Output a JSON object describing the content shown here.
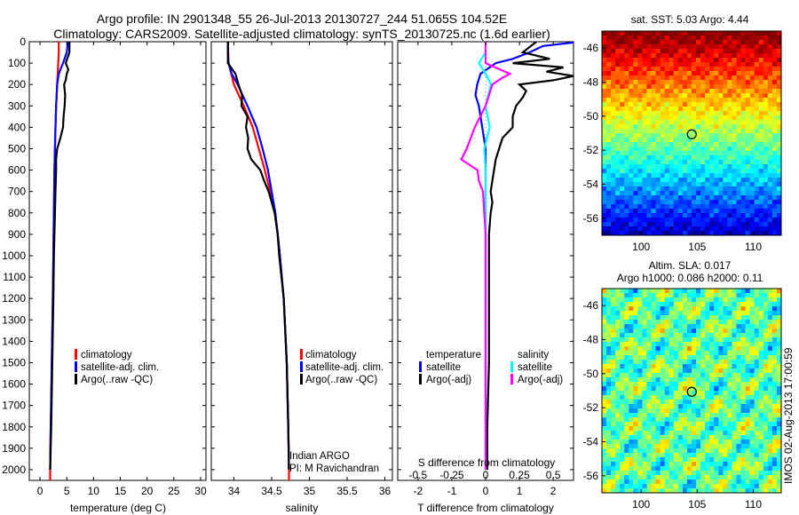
{
  "header": {
    "title_line1": "Argo profile: IN 2901348_55 26-Jul-2013 20130727_244 51.065S 104.52E",
    "title_line2": "Climatology: CARS2009. Satellite-adjusted climatology: synTS_20130725.nc (1.6d earlier)"
  },
  "colors": {
    "climatology": "#ff0000",
    "satellite": "#0000ff",
    "argo": "#000000",
    "salinity_satellite": "#00ffff",
    "salinity_argo": "#ff00ff"
  },
  "depth_axis": {
    "ylim": [
      0,
      2050
    ],
    "ticks": [
      "0",
      "100",
      "200",
      "300",
      "400",
      "500",
      "600",
      "700",
      "800",
      "900",
      "1000",
      "1100",
      "1200",
      "1300",
      "1400",
      "1500",
      "1600",
      "1700",
      "1800",
      "1900",
      "2000"
    ]
  },
  "chart_data": [
    {
      "type": "line",
      "name": "temperature-profile",
      "xlabel": "temperature (deg C)",
      "xlim": [
        -2,
        31
      ],
      "xticks": [
        "0",
        "5",
        "10",
        "15",
        "20",
        "25",
        "30"
      ],
      "legend": [
        "climatology",
        "satellite-adj. clim.",
        "Argo(..raw -QC)"
      ],
      "series": [
        {
          "key": "climatology",
          "depth": [
            0,
            50,
            100,
            150,
            200,
            300,
            400,
            500,
            600,
            800,
            1000,
            1200,
            1500,
            1700,
            1800,
            2000,
            2050
          ],
          "values": [
            3.5,
            3.5,
            3.4,
            3.3,
            3.2,
            3.0,
            2.9,
            2.8,
            2.7,
            2.6,
            2.5,
            2.4,
            2.2,
            2.1,
            2.0,
            1.9,
            1.9
          ]
        },
        {
          "key": "satellite",
          "depth": [
            0,
            50,
            100,
            150,
            200,
            300,
            400,
            500,
            600,
            800,
            1000,
            1200,
            1500,
            1800,
            2000
          ],
          "values": [
            5.2,
            5.0,
            4.3,
            3.5,
            3.2,
            3.0,
            2.9,
            2.8,
            2.7,
            2.6,
            2.5,
            2.4,
            2.2,
            2.0,
            1.9
          ]
        },
        {
          "key": "argo",
          "depth": [
            0,
            50,
            100,
            130,
            150,
            180,
            200,
            250,
            300,
            350,
            400,
            450,
            500,
            550,
            600,
            700,
            800,
            1000,
            1200,
            1500,
            1800,
            2000
          ],
          "values": [
            5.5,
            5.5,
            4.8,
            5.3,
            5.0,
            4.8,
            4.5,
            4.7,
            4.6,
            4.4,
            4.3,
            3.8,
            3.2,
            3.0,
            3.0,
            2.9,
            2.8,
            2.6,
            2.5,
            2.3,
            2.1,
            1.9
          ]
        }
      ]
    },
    {
      "type": "line",
      "name": "salinity-profile",
      "xlabel": "salinity",
      "xlim": [
        33.7,
        36.1
      ],
      "xticks": [
        "34",
        "34.5",
        "35",
        "35.5",
        "36"
      ],
      "legend": [
        "climatology",
        "satellite-adj. clim.",
        "Argo(..raw -QC)"
      ],
      "annotation": [
        "Indian ARGO",
        "PI: M Ravichandran"
      ],
      "series": [
        {
          "key": "climatology",
          "depth": [
            0,
            100,
            200,
            300,
            400,
            500,
            600,
            700,
            800,
            900,
            1000,
            1200,
            1500,
            1800,
            2000,
            2050
          ],
          "values": [
            33.92,
            33.93,
            34.0,
            34.13,
            34.25,
            34.33,
            34.41,
            34.48,
            34.54,
            34.58,
            34.61,
            34.66,
            34.7,
            34.72,
            34.73,
            34.73
          ]
        },
        {
          "key": "satellite",
          "depth": [
            0,
            50,
            100,
            150,
            200,
            300,
            400,
            500,
            600,
            700,
            800,
            900,
            1000,
            1200,
            1500,
            1800,
            2000
          ],
          "values": [
            33.92,
            33.92,
            33.93,
            33.97,
            34.05,
            34.18,
            34.3,
            34.38,
            34.45,
            34.5,
            34.55,
            34.58,
            34.61,
            34.66,
            34.7,
            34.72,
            34.73
          ]
        },
        {
          "key": "argo",
          "depth": [
            0,
            100,
            150,
            200,
            250,
            300,
            350,
            400,
            450,
            500,
            550,
            600,
            650,
            700,
            750,
            800,
            900,
            1000,
            1200,
            1500,
            1800,
            2000
          ],
          "values": [
            33.92,
            33.92,
            34.02,
            34.06,
            34.11,
            34.1,
            34.18,
            34.16,
            34.19,
            34.18,
            34.23,
            34.35,
            34.4,
            34.46,
            34.5,
            34.54,
            34.58,
            34.6,
            34.66,
            34.7,
            34.72,
            34.73
          ]
        }
      ]
    },
    {
      "type": "line",
      "name": "difference-profile",
      "xlabel": "T difference from climatology",
      "xlabel_top": "S difference from climatology",
      "xlim": [
        -2.6,
        2.6
      ],
      "xticks": [
        "-2",
        "-1",
        "0",
        "1",
        "2"
      ],
      "xticks_s": [
        "-0.5",
        "-0.25",
        "0",
        "0.25",
        "0.5"
      ],
      "legend_temperature": {
        "title": "temperature",
        "items": [
          "satellite",
          "Argo(-adj)"
        ]
      },
      "legend_salinity": {
        "title": "salinity",
        "items": [
          "satellite",
          "Argo(-adj)"
        ]
      },
      "series": [
        {
          "key": "t_satellite",
          "depth": [
            0,
            20,
            50,
            80,
            100,
            150,
            200,
            250,
            300,
            400,
            500,
            550,
            600,
            800,
            1000,
            1500,
            2000
          ],
          "values": [
            2.8,
            1.7,
            1.3,
            0.8,
            0.3,
            -0.15,
            -0.25,
            -0.3,
            -0.2,
            -0.1,
            0.0,
            0.0,
            0.0,
            0.0,
            0.0,
            0.0,
            0.0
          ]
        },
        {
          "key": "t_argo",
          "depth": [
            0,
            50,
            80,
            100,
            120,
            140,
            160,
            180,
            200,
            230,
            260,
            300,
            350,
            400,
            450,
            500,
            550,
            600,
            650,
            700,
            750,
            800,
            900,
            1000,
            1200,
            1500,
            1800,
            2000
          ],
          "values": [
            1.5,
            1.1,
            1.9,
            0.8,
            2.3,
            1.8,
            2.6,
            2.0,
            1.0,
            1.2,
            1.1,
            0.9,
            0.8,
            0.8,
            0.5,
            0.4,
            0.3,
            0.25,
            0.2,
            0.15,
            0.2,
            0.15,
            0.1,
            0.1,
            0.1,
            0.1,
            0.05,
            0.05
          ]
        },
        {
          "key": "s_satellite",
          "depth": [
            0,
            50,
            100,
            150,
            200,
            300,
            400,
            500,
            600,
            800,
            1000,
            1500,
            2000
          ],
          "values": [
            0.0,
            0.0,
            -0.05,
            0.0,
            0.04,
            0.0,
            0.03,
            -0.01,
            0.0,
            0.0,
            0.0,
            0.0,
            0.0
          ]
        },
        {
          "key": "s_argo",
          "depth": [
            0,
            100,
            150,
            170,
            200,
            300,
            400,
            500,
            550,
            600,
            650,
            700,
            800,
            900,
            1000,
            1200,
            1500,
            2000
          ],
          "values": [
            0.0,
            0.0,
            0.18,
            0.12,
            0.05,
            0.0,
            -0.08,
            -0.14,
            -0.18,
            -0.06,
            -0.05,
            -0.02,
            -0.01,
            0.0,
            0.0,
            0.0,
            0.0,
            0.0
          ]
        }
      ]
    },
    {
      "type": "heatmap",
      "name": "sst-map",
      "title": "sat. SST: 5.03 Argo: 4.44",
      "xlim": [
        96.5,
        112.5
      ],
      "ylim": [
        -57,
        -45
      ],
      "xticks": [
        "100",
        "105",
        "110"
      ],
      "yticks": [
        "-46",
        "-48",
        "-50",
        "-52",
        "-54",
        "-56"
      ],
      "marker": {
        "lon": 104.52,
        "lat": -51.065
      }
    },
    {
      "type": "heatmap",
      "name": "sla-map",
      "title_line1": "Altim. SLA: 0.017",
      "title_line2": "Argo h1000: 0.086 h2000: 0.11",
      "xlim": [
        96.5,
        112.5
      ],
      "ylim": [
        -57,
        -45
      ],
      "xticks": [
        "100",
        "105",
        "110"
      ],
      "yticks": [
        "-46",
        "-48",
        "-50",
        "-52",
        "-54",
        "-56"
      ],
      "marker": {
        "lon": 104.52,
        "lat": -51.065
      }
    }
  ],
  "footer": {
    "side_label": "IMOS 02-Aug-2013 17:00:59"
  }
}
